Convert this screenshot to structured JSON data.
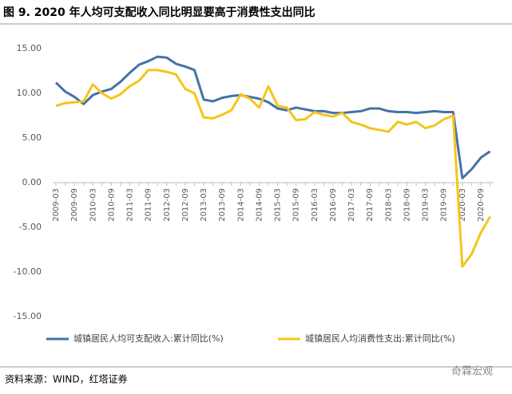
{
  "chart_data": {
    "type": "line",
    "title": "图 9. 2020 年人均可支配收入同比明显要高于消费性支出同比",
    "source": "资料来源：WIND，红塔证券",
    "watermark": "奇霖宏观",
    "categories": [
      "2009-03",
      null,
      "2009-09",
      null,
      "2010-03",
      null,
      "2010-09",
      null,
      "2011-03",
      null,
      "2011-09",
      null,
      "2012-03",
      null,
      "2012-09",
      null,
      "2013-03",
      null,
      "2013-09",
      null,
      "2014-03",
      null,
      "2014-09",
      null,
      "2015-03",
      null,
      "2015-09",
      null,
      "2016-03",
      null,
      "2016-09",
      null,
      "2017-03",
      null,
      "2017-09",
      null,
      "2018-03",
      null,
      "2018-09",
      null,
      "2019-03",
      null,
      "2019-09",
      null,
      "2020-03",
      null,
      "2020-09",
      null
    ],
    "series": [
      {
        "name": "城镇居民人均可支配收入:累计同比(%)",
        "color": "#4472a8",
        "values": [
          11.2,
          10.2,
          9.6,
          8.8,
          9.8,
          10.2,
          10.5,
          11.3,
          12.3,
          13.2,
          13.6,
          14.1,
          14.0,
          13.3,
          13.0,
          12.6,
          9.3,
          9.1,
          9.5,
          9.7,
          9.8,
          9.6,
          9.4,
          9.0,
          8.3,
          8.1,
          8.4,
          8.2,
          8.0,
          8.0,
          7.8,
          7.8,
          7.9,
          8.0,
          8.3,
          8.3,
          8.0,
          7.9,
          7.9,
          7.8,
          7.9,
          8.0,
          7.9,
          7.9,
          0.5,
          1.5,
          2.8,
          3.5
        ]
      },
      {
        "name": "城镇居民人均消费性支出:累计同比(%)",
        "color": "#f5c518",
        "values": [
          8.6,
          8.9,
          9.0,
          9.1,
          11.0,
          10.0,
          9.4,
          9.9,
          10.8,
          11.4,
          12.6,
          12.6,
          12.4,
          12.1,
          10.5,
          10.0,
          7.3,
          7.2,
          7.6,
          8.1,
          9.9,
          9.4,
          8.4,
          10.8,
          8.6,
          8.4,
          7.0,
          7.1,
          7.9,
          7.6,
          7.4,
          7.8,
          6.8,
          6.5,
          6.1,
          5.9,
          5.7,
          6.8,
          6.5,
          6.8,
          6.1,
          6.4,
          7.1,
          7.5,
          -9.4,
          -8.0,
          -5.6,
          -3.8
        ]
      }
    ],
    "ylim": [
      -15,
      15
    ],
    "yticks": [
      {
        "value": 15,
        "label": "15.00"
      },
      {
        "value": 10,
        "label": "10.00"
      },
      {
        "value": 5,
        "label": "5.00"
      },
      {
        "value": 0,
        "label": "0.00"
      },
      {
        "value": -5,
        "label": "-5.00"
      },
      {
        "value": -10,
        "label": "-10.00"
      },
      {
        "value": -15,
        "label": "-15.00"
      }
    ]
  }
}
